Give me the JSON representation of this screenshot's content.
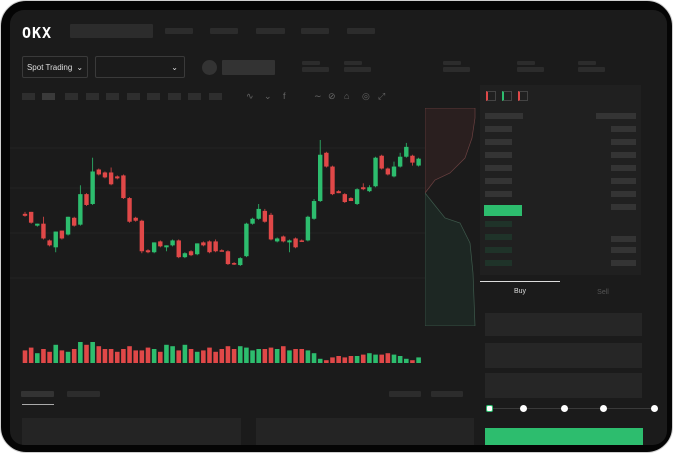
{
  "header": {
    "logo": "OKX"
  },
  "toolbar": {
    "market_button": "Spot Trading",
    "market_chevron": "chevron-down-icon",
    "pair_chevron": "chevron-down-icon"
  },
  "colors": {
    "up": "#2dbd6e",
    "down": "#e04848",
    "background": "#1b1b1b",
    "accent": "#2dbd6e"
  },
  "chart_tools": [
    "indicator-icon",
    "indicator-icon",
    "fx-icon",
    "line-icon",
    "ruler-icon",
    "camera-icon",
    "settings-icon",
    "fullscreen-icon"
  ],
  "orderbook": {
    "view_icons": [
      "orderbook-both-icon",
      "orderbook-bids-icon",
      "orderbook-asks-icon"
    ]
  },
  "trade": {
    "tabs": [
      {
        "label": "Buy",
        "active": true
      },
      {
        "label": "Sell",
        "active": false
      }
    ],
    "slider_percent": 0
  },
  "chart_data": {
    "type": "candlestick",
    "candles": [
      [
        95,
        97,
        92,
        93
      ],
      [
        97,
        97,
        85,
        86
      ],
      [
        83,
        85,
        82,
        85
      ],
      [
        85,
        92,
        69,
        70
      ],
      [
        68,
        69,
        62,
        63
      ],
      [
        61,
        77,
        56,
        77
      ],
      [
        78,
        78,
        69,
        70
      ],
      [
        74,
        92,
        73,
        92
      ],
      [
        91,
        92,
        82,
        83
      ],
      [
        84,
        124,
        83,
        115
      ],
      [
        115,
        116,
        103,
        104
      ],
      [
        105,
        152,
        104,
        138
      ],
      [
        140,
        141,
        134,
        135
      ],
      [
        137,
        138,
        131,
        132
      ],
      [
        137,
        142,
        124,
        125
      ],
      [
        133,
        134,
        130,
        131
      ],
      [
        134,
        135,
        110,
        111
      ],
      [
        111,
        112,
        86,
        87
      ],
      [
        91,
        92,
        87,
        88
      ],
      [
        88,
        89,
        55,
        57
      ],
      [
        58,
        59,
        55,
        56
      ],
      [
        56,
        66,
        55,
        66
      ],
      [
        67,
        68,
        61,
        62
      ],
      [
        61,
        63,
        57,
        63
      ],
      [
        63,
        69,
        62,
        68
      ],
      [
        68,
        69,
        50,
        51
      ],
      [
        51,
        56,
        50,
        55
      ],
      [
        57,
        58,
        52,
        53
      ],
      [
        54,
        65,
        53,
        65
      ],
      [
        66,
        67,
        62,
        63
      ],
      [
        67,
        68,
        55,
        56
      ],
      [
        67,
        69,
        56,
        57
      ],
      [
        58,
        59,
        57,
        57
      ],
      [
        57,
        58,
        43,
        44
      ],
      [
        45,
        46,
        43,
        44
      ],
      [
        43,
        51,
        42,
        50
      ],
      [
        52,
        86,
        51,
        85
      ],
      [
        85,
        91,
        84,
        90
      ],
      [
        90,
        105,
        89,
        100
      ],
      [
        98,
        100,
        86,
        87
      ],
      [
        94,
        96,
        68,
        69
      ],
      [
        67,
        71,
        66,
        70
      ],
      [
        72,
        73,
        66,
        67
      ],
      [
        66,
        69,
        56,
        68
      ],
      [
        70,
        71,
        60,
        61
      ],
      [
        68,
        69,
        67,
        67
      ],
      [
        68,
        93,
        67,
        92
      ],
      [
        90,
        110,
        89,
        108
      ],
      [
        108,
        170,
        107,
        155
      ],
      [
        157,
        158,
        142,
        143
      ],
      [
        143,
        144,
        114,
        115
      ],
      [
        118,
        119,
        116,
        116
      ],
      [
        115,
        116,
        106,
        107
      ],
      [
        111,
        112,
        108,
        108
      ],
      [
        105,
        121,
        104,
        120
      ],
      [
        122,
        126,
        119,
        120
      ],
      [
        118,
        124,
        117,
        122
      ],
      [
        123,
        153,
        122,
        152
      ],
      [
        154,
        155,
        140,
        141
      ],
      [
        141,
        142,
        134,
        135
      ],
      [
        133,
        148,
        132,
        143
      ],
      [
        143,
        157,
        142,
        153
      ],
      [
        153,
        167,
        152,
        163
      ],
      [
        154,
        155,
        144,
        147
      ],
      [
        144,
        152,
        143,
        151
      ]
    ],
    "volume": [
      9,
      11,
      7,
      10,
      8,
      13,
      9,
      8,
      10,
      15,
      13,
      15,
      12,
      10,
      10,
      8,
      10,
      12,
      9,
      9,
      11,
      10,
      8,
      13,
      12,
      9,
      13,
      10,
      8,
      9,
      11,
      8,
      10,
      12,
      10,
      12,
      11,
      9,
      10,
      10,
      11,
      10,
      12,
      9,
      10,
      10,
      9,
      7,
      3,
      2,
      4,
      5,
      4,
      5,
      5,
      6,
      7,
      6,
      6,
      7,
      6,
      5,
      3,
      2,
      4
    ]
  }
}
